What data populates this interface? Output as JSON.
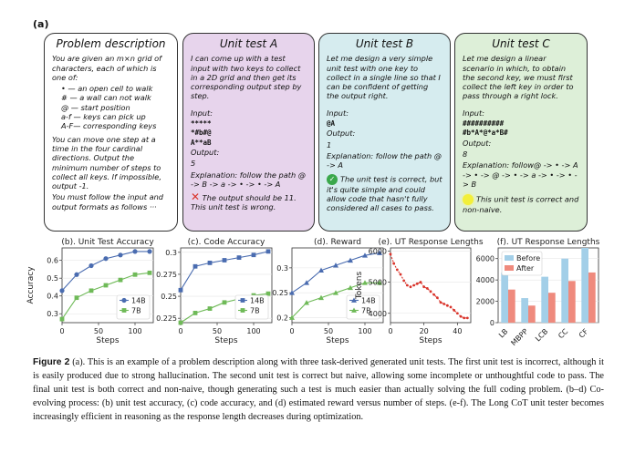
{
  "panel_label": "(a)",
  "problem": {
    "title": "Problem description",
    "intro": "You are given an m×n grid of characters, each of which is one of:",
    "legend": [
      "• — an open cell to walk",
      "# — a wall can not walk",
      "@ — start position",
      "a-f — keys can pick up",
      "A-F— corresponding keys"
    ],
    "body": "You can move one step at a time in the four cardinal directions. Output the minimum number of steps to collect all keys. If impossible, output -1.",
    "footer": "You must follow the input and output formats as follows ···"
  },
  "test_a": {
    "title": "Unit test A",
    "desc": "I can come up with a test input with two keys to collect in a 2D grid and then get its corresponding output step by step.",
    "input_label": "Input:",
    "input_lines": [
      "*****",
      "*#b#@",
      "A**aB"
    ],
    "output_label": "Output:",
    "output_value": "5",
    "explanation": "Explanation: follow the path @ -> B -> a -> • -> • -> A",
    "verdict": "The output should be 11. This unit test is wrong.",
    "mark_color": "#d9342b"
  },
  "test_b": {
    "title": "Unit test B",
    "desc": "Let me design a very simple unit test with one key to collect in a single line so that I can be confident of getting the output right.",
    "input_label": "Input:",
    "input_lines": [
      "@A"
    ],
    "output_label": "Output:",
    "output_value": "1",
    "explanation": "Explanation: follow the path @ -> A",
    "verdict": "The unit test is correct, but it's quite simple and could allow code that hasn't fully considered all cases to pass.",
    "mark_color": "#3aa84b"
  },
  "test_c": {
    "title": "Unit test C",
    "desc": "Let me design a linear scenario in which, to obtain the second key, we must first collect the left key in order to pass through a right lock.",
    "input_label": "Input:",
    "input_lines": [
      "##########",
      "#b*A*@*a*B#"
    ],
    "output_label": "Output:",
    "output_value": "8",
    "explanation": "Explanation: follow@ -> • -> A -> • -> @ -> • -> a -> • -> • -> B",
    "verdict": "This unit test is correct and non-naive.",
    "mark_color": "#f2ef3a"
  },
  "chart_data": [
    {
      "type": "line",
      "title": "(b). Unit Test Accuracy",
      "xlabel": "Steps",
      "ylabel": "Accuracy",
      "xlim": [
        0,
        125
      ],
      "ylim": [
        0.25,
        0.67
      ],
      "xticks": [
        0,
        50,
        100
      ],
      "yticks": [
        0.3,
        0.4,
        0.5,
        0.6
      ],
      "legend": "lower right",
      "series": [
        {
          "name": "14B",
          "x": [
            0,
            20,
            40,
            60,
            80,
            100,
            120
          ],
          "values": [
            0.43,
            0.52,
            0.57,
            0.61,
            0.63,
            0.65,
            0.65
          ],
          "color": "#4a6cb0",
          "marker": "circle"
        },
        {
          "name": "7B",
          "x": [
            0,
            20,
            40,
            60,
            80,
            100,
            120
          ],
          "values": [
            0.27,
            0.39,
            0.43,
            0.46,
            0.49,
            0.52,
            0.53
          ],
          "color": "#6fba58",
          "marker": "square"
        }
      ]
    },
    {
      "type": "line",
      "title": "(c). Code Accuracy",
      "xlabel": "Steps",
      "ylabel": "",
      "xlim": [
        0,
        125
      ],
      "ylim": [
        0.22,
        0.305
      ],
      "xticks": [
        0,
        50,
        100
      ],
      "yticks": [
        0.225,
        0.25,
        0.275,
        0.3
      ],
      "legend": "lower right",
      "series": [
        {
          "name": "14B",
          "x": [
            0,
            20,
            40,
            60,
            80,
            100,
            120
          ],
          "values": [
            0.257,
            0.284,
            0.288,
            0.291,
            0.294,
            0.297,
            0.301
          ],
          "color": "#4a6cb0",
          "marker": "square"
        },
        {
          "name": "7B",
          "x": [
            0,
            20,
            40,
            60,
            80,
            100,
            120
          ],
          "values": [
            0.22,
            0.231,
            0.236,
            0.243,
            0.247,
            0.251,
            0.253
          ],
          "color": "#6fba58",
          "marker": "square"
        }
      ]
    },
    {
      "type": "line",
      "title": "(d). Reward",
      "xlabel": "Steps",
      "ylabel": "",
      "xlim": [
        0,
        125
      ],
      "ylim": [
        0.19,
        0.34
      ],
      "xticks": [
        0,
        50,
        100
      ],
      "yticks": [
        0.2,
        0.25,
        0.3
      ],
      "legend": "lower right",
      "series": [
        {
          "name": "14B",
          "x": [
            0,
            20,
            40,
            60,
            80,
            100,
            120
          ],
          "values": [
            0.25,
            0.27,
            0.295,
            0.305,
            0.315,
            0.325,
            0.33
          ],
          "color": "#4a6cb0",
          "marker": "triangle"
        },
        {
          "name": "7B",
          "x": [
            0,
            20,
            40,
            60,
            80,
            100,
            120
          ],
          "values": [
            0.2,
            0.23,
            0.24,
            0.25,
            0.26,
            0.27,
            0.27
          ],
          "color": "#6fba58",
          "marker": "triangle"
        }
      ]
    },
    {
      "type": "line",
      "title": "(e). UT Response Lengths",
      "xlabel": "Steps",
      "ylabel": "Tokens",
      "xlim": [
        0,
        48
      ],
      "ylim": [
        3700,
        6100
      ],
      "xticks": [
        0,
        20,
        40
      ],
      "yticks": [
        4000,
        5000,
        6000
      ],
      "series": [
        {
          "name": "",
          "x": [
            0,
            2,
            4,
            6,
            8,
            10,
            12,
            14,
            16,
            18,
            20,
            22,
            24,
            26,
            28,
            30,
            32,
            34,
            36,
            38,
            40,
            42,
            44,
            46
          ],
          "values": [
            5900,
            5600,
            5400,
            5250,
            5050,
            4900,
            4850,
            4900,
            4950,
            5000,
            4850,
            4800,
            4700,
            4600,
            4500,
            4350,
            4300,
            4250,
            4200,
            4100,
            4000,
            3900,
            3850,
            3850
          ],
          "color": "#d9342b",
          "marker": "dot"
        }
      ]
    },
    {
      "type": "bar",
      "title": "(f). UT Response Lengths",
      "xlabel": "",
      "ylabel": "",
      "categories": [
        "LB",
        "MBPP",
        "LCB",
        "CC",
        "CF"
      ],
      "ylim": [
        0,
        7000
      ],
      "yticks": [
        0,
        2000,
        4000,
        6000
      ],
      "legend": "top-left",
      "series": [
        {
          "name": "Before",
          "values": [
            4700,
            2300,
            4300,
            6000,
            7000
          ],
          "color": "#a3cfe8"
        },
        {
          "name": "After",
          "values": [
            3100,
            1600,
            2800,
            3900,
            4700
          ],
          "color": "#ef8a7d"
        }
      ]
    }
  ],
  "caption": {
    "label": "Figure 2",
    "text": " (a). This is an example of a problem description along with three task-derived generated unit tests. The first unit test is incorrect, although it is easily produced due to strong hallucination. The second unit test is correct but naive, allowing some incomplete or unthoughtful code to pass. The final unit test is both correct and non-naive, though generating such a test is much easier than actually solving the full coding problem. (b–d) Co-evolving process: (b) unit test accuracy, (c) code accuracy, and (d) estimated reward versus number of steps. (e-f). The Long CoT unit tester becomes increasingly efficient in reasoning as the response length decreases during optimization."
  }
}
